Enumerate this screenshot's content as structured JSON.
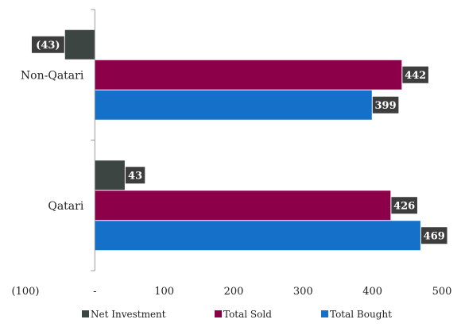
{
  "chart_data": {
    "type": "bar",
    "orientation": "horizontal",
    "categories": [
      "Non-Qatari",
      "Qatari"
    ],
    "series": [
      {
        "name": "Net Investment",
        "color": "#3d4543",
        "values": [
          -43,
          43
        ],
        "labels": [
          "(43)",
          "43"
        ]
      },
      {
        "name": "Total Sold",
        "color": "#8b0049",
        "values": [
          442,
          426
        ],
        "labels": [
          "442",
          "426"
        ]
      },
      {
        "name": "Total Bought",
        "color": "#1470c8",
        "values": [
          399,
          469
        ],
        "labels": [
          "399",
          "469"
        ]
      }
    ],
    "xlim": [
      -100,
      500
    ],
    "xticks": [
      {
        "value": -100,
        "label": "(100)"
      },
      {
        "value": 0,
        "label": "-"
      },
      {
        "value": 100,
        "label": "100"
      },
      {
        "value": 200,
        "label": "200"
      },
      {
        "value": 300,
        "label": "300"
      },
      {
        "value": 400,
        "label": "400"
      },
      {
        "value": 500,
        "label": "500"
      }
    ],
    "legend_position": "bottom",
    "grid": false
  }
}
